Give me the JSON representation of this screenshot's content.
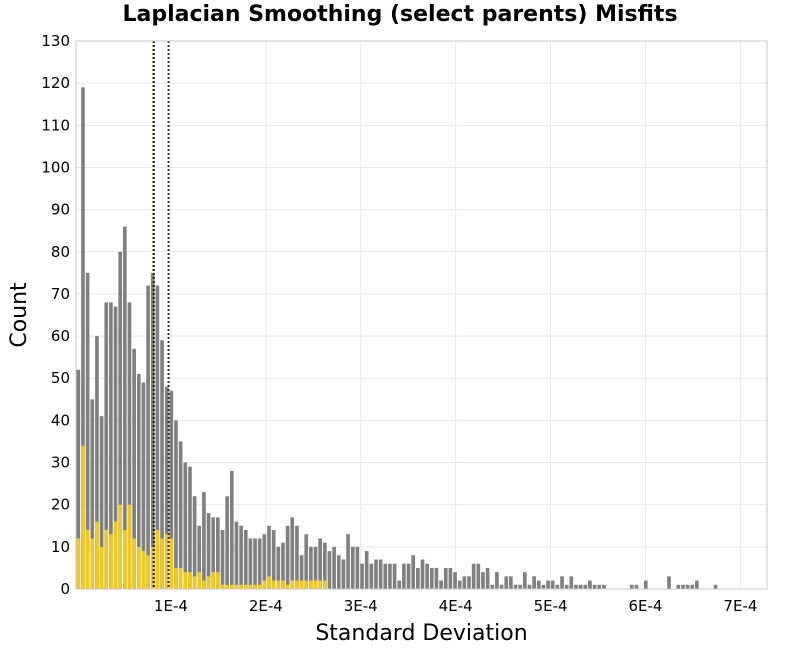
{
  "chart_data": {
    "type": "bar",
    "title": "Laplacian Smoothing (select parents) Misfits",
    "xlabel": "Standard Deviation",
    "ylabel": "Count",
    "xlim": [
      0,
      0.000728
    ],
    "ylim": [
      0,
      130
    ],
    "y_ticks": [
      0,
      10,
      20,
      30,
      40,
      50,
      60,
      70,
      80,
      90,
      100,
      110,
      120,
      130
    ],
    "x_ticks": [
      {
        "value": 0.0001,
        "label": "1E-4"
      },
      {
        "value": 0.0002,
        "label": "2E-4"
      },
      {
        "value": 0.0003,
        "label": "3E-4"
      },
      {
        "value": 0.0004,
        "label": "4E-4"
      },
      {
        "value": 0.0005,
        "label": "5E-4"
      },
      {
        "value": 0.0006,
        "label": "6E-4"
      },
      {
        "value": 0.0007,
        "label": "7E-4"
      }
    ],
    "bin_width": 4.9e-06,
    "bin_start": 0,
    "series": [
      {
        "color": "#808080",
        "values": [
          52,
          119,
          75,
          45,
          60,
          41,
          68,
          68,
          67,
          80,
          86,
          68,
          57,
          51,
          49,
          72,
          75,
          72,
          59,
          48,
          47,
          40,
          35,
          30,
          29,
          22,
          15,
          23,
          18,
          17,
          17,
          14,
          22,
          28,
          16,
          15,
          14,
          12,
          12,
          12,
          13,
          15,
          14,
          10,
          11,
          15,
          17,
          15,
          8,
          13,
          10,
          10,
          12,
          11,
          9,
          10,
          8,
          7,
          13,
          10,
          10,
          6,
          9,
          6,
          7,
          7,
          6,
          6,
          6,
          2,
          6,
          6,
          8,
          5,
          7,
          6,
          5,
          5,
          2,
          5,
          5,
          4,
          2,
          3,
          3,
          6,
          6,
          4,
          5,
          1,
          4,
          1,
          3,
          3,
          1,
          1,
          4,
          1,
          3,
          2,
          1,
          2,
          2,
          1,
          3,
          1,
          3,
          1,
          1,
          1,
          2,
          1,
          1,
          1,
          0,
          0,
          0,
          0,
          0,
          1,
          1,
          0,
          2,
          0,
          0,
          0,
          0,
          3,
          0,
          1,
          1,
          1,
          1,
          2,
          0,
          0,
          0,
          1,
          0,
          0,
          0,
          0,
          0,
          0,
          0,
          0,
          0,
          0,
          0,
          0,
          0,
          0,
          0,
          0,
          0,
          0,
          0,
          0,
          0,
          0,
          0,
          0,
          0,
          0,
          0,
          0,
          0,
          0,
          0,
          0,
          1,
          1,
          0,
          0,
          0,
          0,
          0,
          0,
          0,
          1,
          0,
          1
        ]
      },
      {
        "color": "#F0C81E",
        "values": [
          12,
          34,
          14,
          12,
          16,
          10,
          14,
          13,
          16,
          20,
          14,
          20,
          12,
          10,
          9,
          8,
          10,
          14,
          12,
          13,
          12,
          5,
          5,
          4,
          4,
          3,
          4,
          2,
          3,
          4,
          4,
          1,
          1,
          1,
          1,
          1,
          1,
          1,
          1,
          1,
          2,
          3,
          2,
          2,
          2,
          1,
          2,
          2,
          2,
          2,
          2,
          2,
          2,
          2,
          0,
          0,
          0,
          0,
          0,
          0,
          0,
          0,
          0,
          0,
          0,
          0,
          0,
          0,
          0,
          0,
          0,
          0,
          0,
          0,
          0,
          0,
          0,
          0,
          0,
          0,
          0,
          0,
          0,
          0,
          0,
          0,
          0,
          0,
          0,
          0,
          0,
          0,
          0,
          0,
          0,
          0,
          0,
          0,
          0,
          0,
          0,
          0,
          0,
          0,
          0,
          0,
          0,
          0,
          0,
          0,
          0,
          0,
          0,
          0,
          0,
          0,
          0,
          0,
          0,
          0,
          0,
          0,
          0,
          0,
          0,
          0,
          0,
          0,
          0,
          0,
          0,
          0,
          0,
          0,
          0,
          0,
          0,
          0,
          0,
          0,
          0,
          0,
          0,
          0,
          0,
          0,
          0,
          0,
          0,
          0,
          0,
          0,
          0,
          0,
          0,
          0,
          0,
          0,
          0,
          0,
          0,
          0,
          0,
          0,
          0,
          0,
          0,
          0,
          0,
          0,
          0,
          0,
          0,
          0,
          0,
          0,
          0,
          0,
          0,
          0,
          0,
          0
        ]
      }
    ],
    "reference_lines": [
      {
        "x": 8.15e-05,
        "color": "#8B7A1A",
        "style": "dotted"
      },
      {
        "x": 8.2e-05,
        "color": "#222222",
        "style": "dotted"
      },
      {
        "x": 9.75e-05,
        "color": "#333333",
        "style": "dotted"
      }
    ],
    "grid": true,
    "colors": {
      "background": "#ffffff",
      "grid": "#e9e9e9",
      "frame": "#c8c8c8"
    }
  }
}
